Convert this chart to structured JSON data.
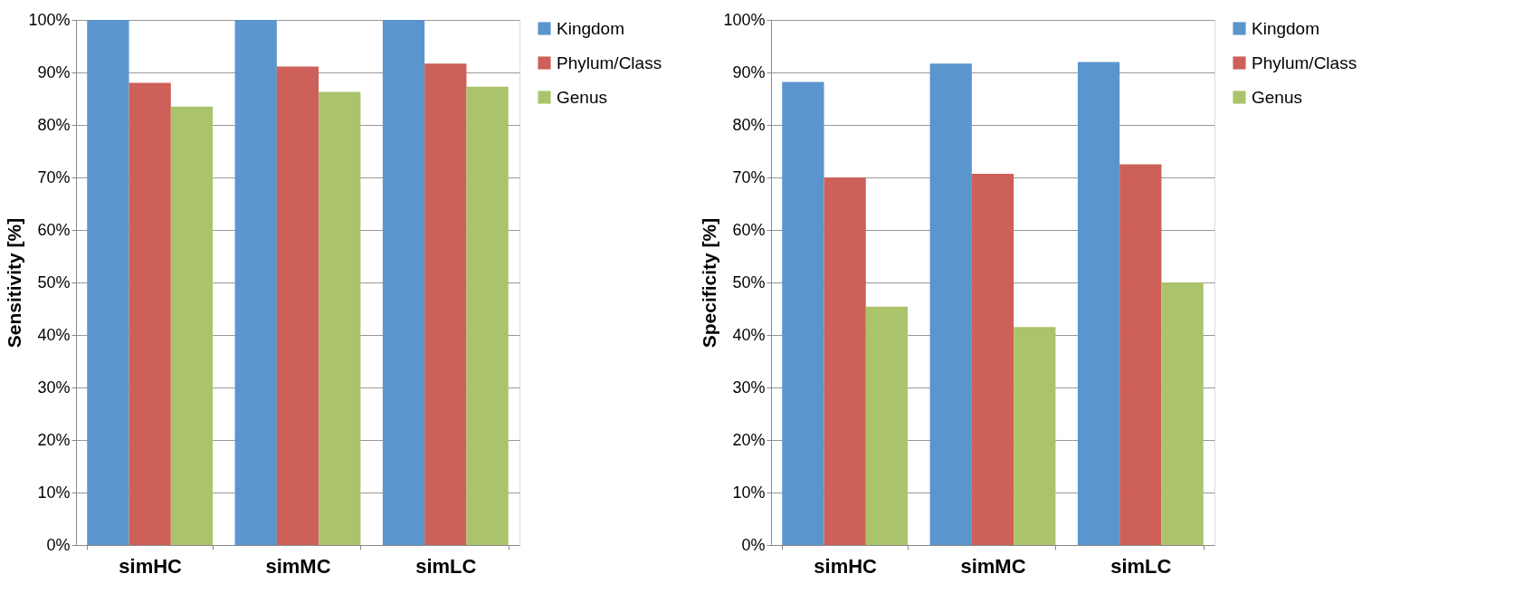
{
  "chart_data": [
    {
      "type": "bar",
      "ylabel": "Sensitivity [%]",
      "categories": [
        "simHC",
        "simMC",
        "simLC"
      ],
      "series": [
        {
          "name": "Kingdom",
          "color": "#5b95cd",
          "values": [
            100,
            100,
            100
          ]
        },
        {
          "name": "Phylum/Class",
          "color": "#cd6058",
          "values": [
            88.0,
            91.1,
            91.7
          ]
        },
        {
          "name": "Genus",
          "color": "#abc46c",
          "values": [
            83.5,
            86.3,
            87.3
          ]
        }
      ],
      "ylim": [
        0,
        100
      ],
      "yticks": [
        {
          "value": 0,
          "label": "0%"
        },
        {
          "value": 10,
          "label": "10%"
        },
        {
          "value": 20,
          "label": "20%"
        },
        {
          "value": 30,
          "label": "30%"
        },
        {
          "value": 40,
          "label": "40%"
        },
        {
          "value": 50,
          "label": "50%"
        },
        {
          "value": 60,
          "label": "60%"
        },
        {
          "value": 70,
          "label": "70%"
        },
        {
          "value": 80,
          "label": "80%"
        },
        {
          "value": 90,
          "label": "90%"
        },
        {
          "value": 100,
          "label": "100%"
        }
      ],
      "grid": "y",
      "legend": "right"
    },
    {
      "type": "bar",
      "ylabel": "Specificity [%]",
      "categories": [
        "simHC",
        "simMC",
        "simLC"
      ],
      "series": [
        {
          "name": "Kingdom",
          "color": "#5b95cd",
          "values": [
            88.2,
            91.7,
            92.0
          ]
        },
        {
          "name": "Phylum/Class",
          "color": "#cd6058",
          "values": [
            70.0,
            70.7,
            72.5
          ]
        },
        {
          "name": "Genus",
          "color": "#abc46c",
          "values": [
            45.4,
            41.5,
            50.0
          ]
        }
      ],
      "ylim": [
        0,
        100
      ],
      "yticks": [
        {
          "value": 0,
          "label": "0%"
        },
        {
          "value": 10,
          "label": "10%"
        },
        {
          "value": 20,
          "label": "20%"
        },
        {
          "value": 30,
          "label": "30%"
        },
        {
          "value": 40,
          "label": "40%"
        },
        {
          "value": 50,
          "label": "50%"
        },
        {
          "value": 60,
          "label": "60%"
        },
        {
          "value": 70,
          "label": "70%"
        },
        {
          "value": 80,
          "label": "80%"
        },
        {
          "value": 90,
          "label": "90%"
        },
        {
          "value": 100,
          "label": "100%"
        }
      ],
      "grid": "y",
      "legend": "right"
    }
  ]
}
